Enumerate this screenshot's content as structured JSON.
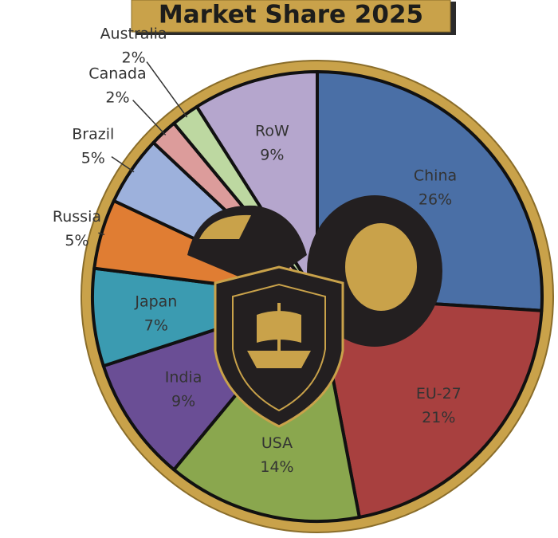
{
  "chart_data": {
    "type": "pie",
    "title": "Market Share 2025",
    "categories": [
      "China",
      "EU-27",
      "USA",
      "India",
      "Japan",
      "Russia",
      "Brazil",
      "Canada",
      "Australia",
      "RoW"
    ],
    "values": [
      26,
      21,
      14,
      9,
      7,
      5,
      5,
      2,
      2,
      9
    ],
    "value_labels": [
      "26%",
      "21%",
      "14%",
      "9%",
      "7%",
      "5%",
      "5%",
      "2%",
      "2%",
      "9%"
    ],
    "colors": [
      "#4a6fa6",
      "#a8403f",
      "#8aa74e",
      "#6a4e95",
      "#3b9bb1",
      "#e07d33",
      "#9db1dc",
      "#dc9c9b",
      "#bdd8a1",
      "#b5a6cd"
    ]
  }
}
